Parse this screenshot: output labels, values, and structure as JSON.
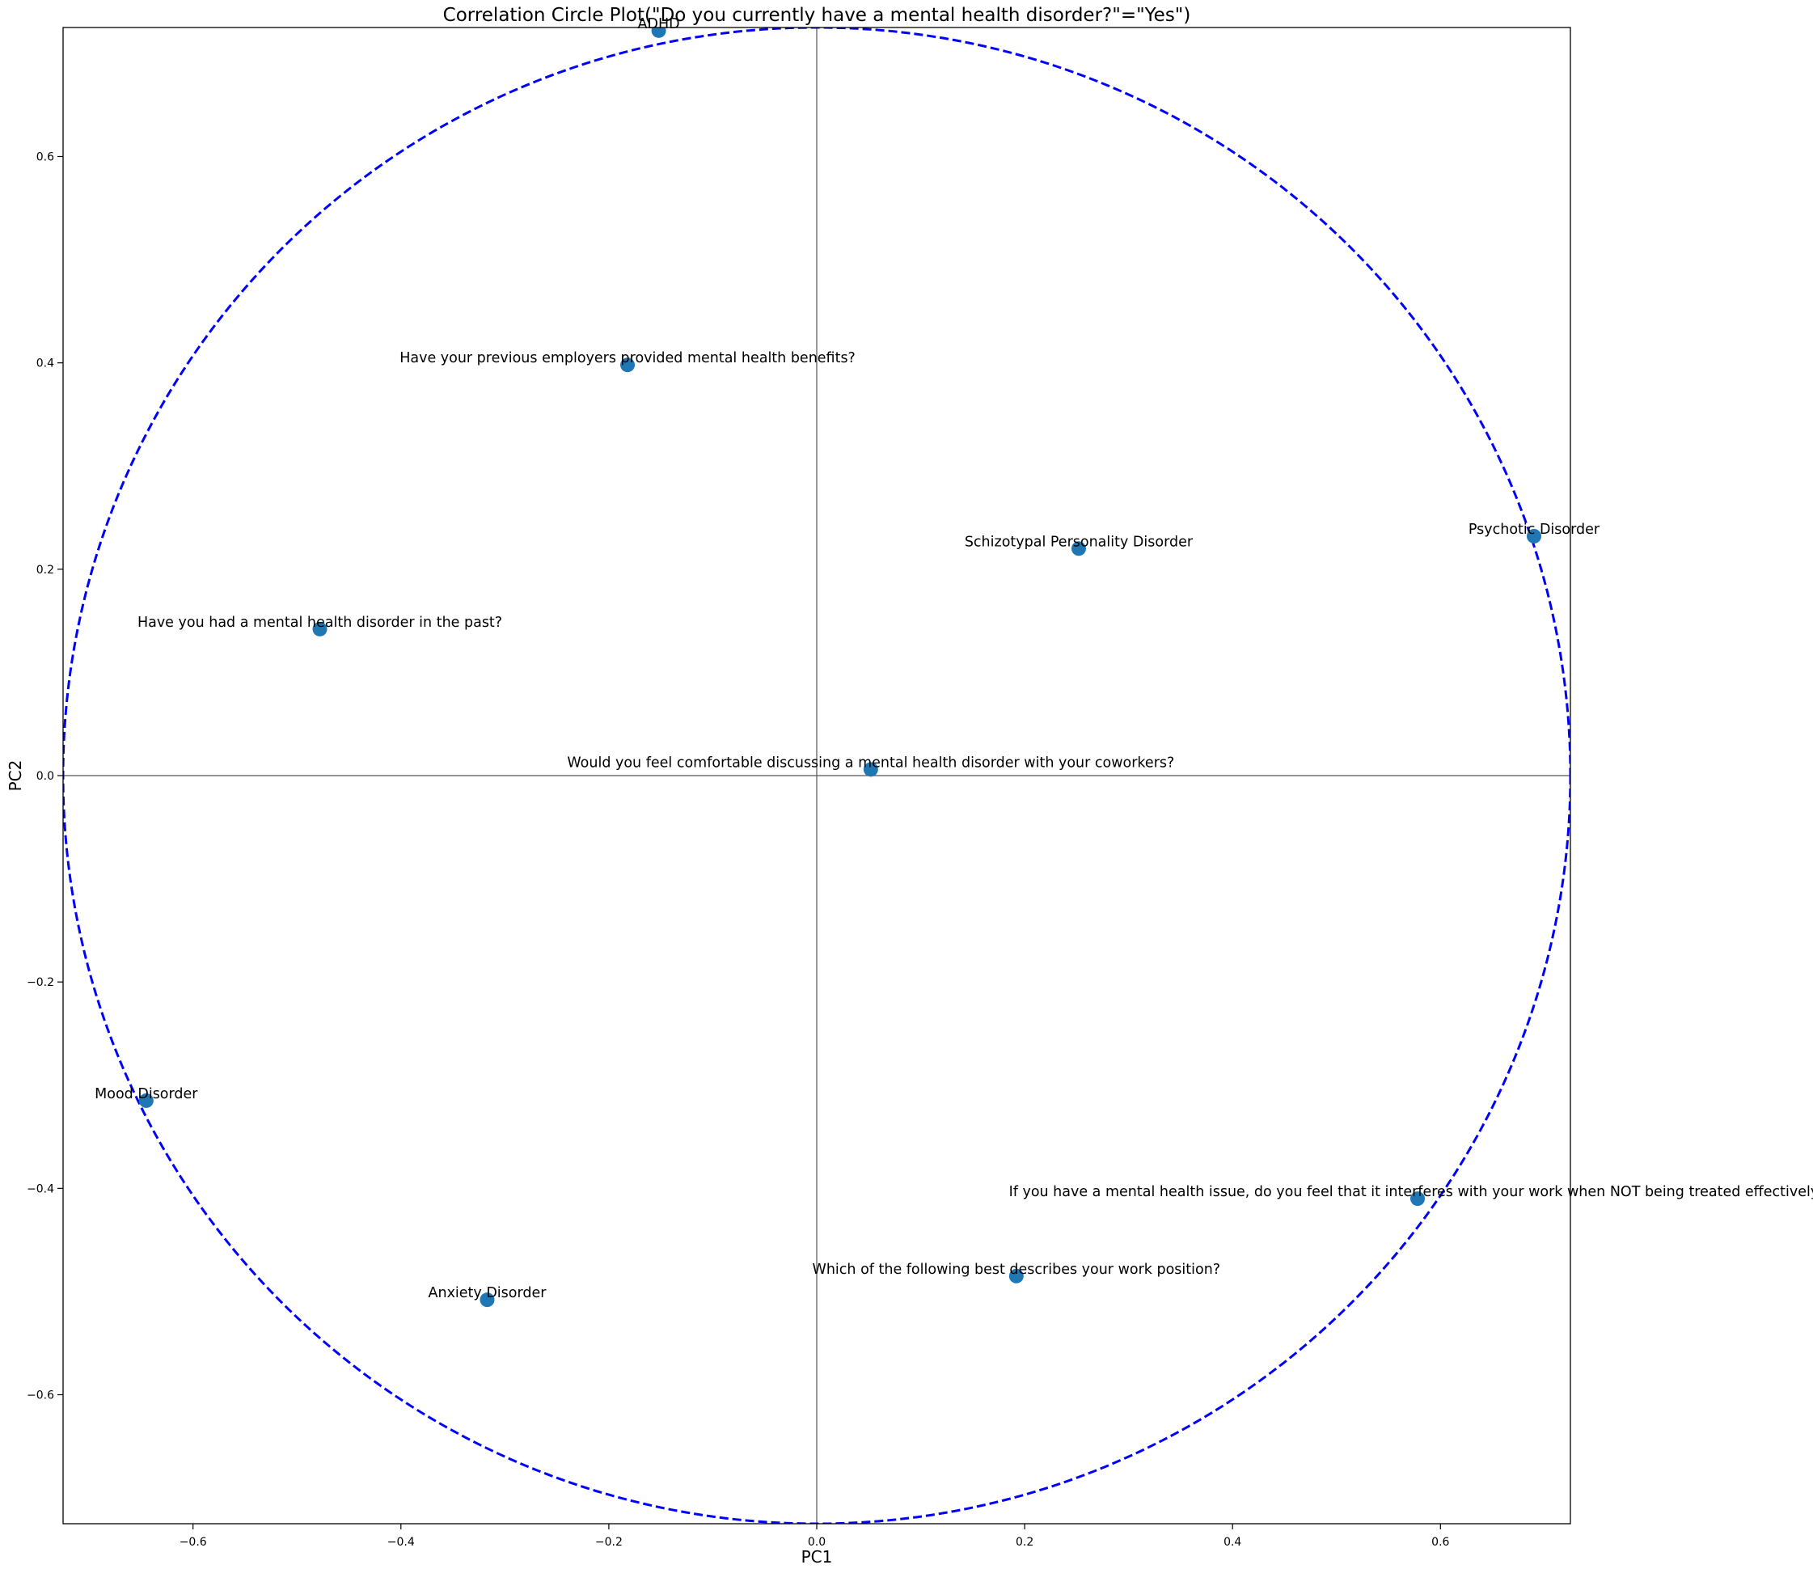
{
  "chart_data": {
    "type": "scatter",
    "title": "Correlation Circle Plot(\"Do you currently have a mental health disorder?\"=\"Yes\")",
    "xlabel": "PC1",
    "ylabel": "PC2",
    "xlim": [
      -0.725,
      0.725
    ],
    "ylim": [
      -0.725,
      0.725
    ],
    "x_ticks": [
      -0.6,
      -0.4,
      -0.2,
      0.0,
      0.2,
      0.4,
      0.6
    ],
    "y_ticks": [
      -0.6,
      -0.4,
      -0.2,
      0.0,
      0.2,
      0.4,
      0.6
    ],
    "x_tick_labels": [
      "−0.6",
      "−0.4",
      "−0.2",
      "0.0",
      "0.2",
      "0.4",
      "0.6"
    ],
    "y_tick_labels": [
      "−0.6",
      "−0.4",
      "−0.2",
      "0.0",
      "0.2",
      "0.4",
      "0.6"
    ],
    "circle_radius": 0.725,
    "grid": false,
    "points": [
      {
        "label": "ADHD",
        "x": -0.152,
        "y": 0.722
      },
      {
        "label": "Have your previous employers provided mental health benefits?",
        "x": -0.182,
        "y": 0.398
      },
      {
        "label": "Schizotypal Personality Disorder",
        "x": 0.252,
        "y": 0.22
      },
      {
        "label": "Psychotic Disorder",
        "x": 0.69,
        "y": 0.232
      },
      {
        "label": "Have you had a mental health disorder in the past?",
        "x": -0.478,
        "y": 0.142
      },
      {
        "label": "Would you feel comfortable discussing a mental health disorder with your coworkers?",
        "x": 0.052,
        "y": 0.006
      },
      {
        "label": "Mood Disorder",
        "x": -0.645,
        "y": -0.315
      },
      {
        "label": "If you have a mental health issue, do you feel that it interferes with your work when NOT being treated effectively?",
        "x": 0.578,
        "y": -0.41
      },
      {
        "label": "Which of the following best describes your work position?",
        "x": 0.192,
        "y": -0.485
      },
      {
        "label": "Anxiety Disorder",
        "x": -0.317,
        "y": -0.508
      }
    ],
    "colors": {
      "point": "#1f77b4",
      "circle": "#0000ff",
      "axes_lines": "#555555"
    }
  }
}
